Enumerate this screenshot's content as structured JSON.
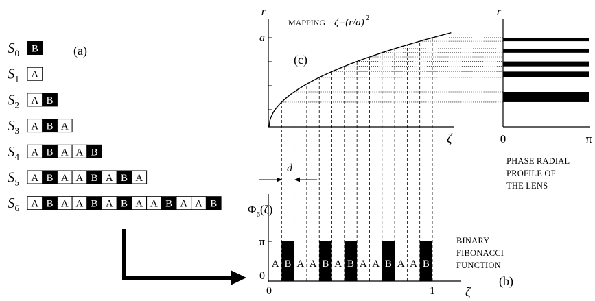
{
  "panel_labels": {
    "a": "(a)",
    "b": "(b)",
    "c": "(c)"
  },
  "sequences": [
    {
      "symbol": "S",
      "index": "0",
      "cells": [
        "B"
      ]
    },
    {
      "symbol": "S",
      "index": "1",
      "cells": [
        "A"
      ]
    },
    {
      "symbol": "S",
      "index": "2",
      "cells": [
        "A",
        "B"
      ]
    },
    {
      "symbol": "S",
      "index": "3",
      "cells": [
        "A",
        "B",
        "A"
      ]
    },
    {
      "symbol": "S",
      "index": "4",
      "cells": [
        "A",
        "B",
        "A",
        "A",
        "B"
      ]
    },
    {
      "symbol": "S",
      "index": "5",
      "cells": [
        "A",
        "B",
        "A",
        "A",
        "B",
        "A",
        "B",
        "A"
      ]
    },
    {
      "symbol": "S",
      "index": "6",
      "cells": [
        "A",
        "B",
        "A",
        "A",
        "B",
        "A",
        "B",
        "A",
        "A",
        "B",
        "A",
        "A",
        "B"
      ]
    }
  ],
  "mapping": {
    "title": "MAPPING",
    "formula": "ζ=(r/a)",
    "exponent": "2",
    "y_axis": "r",
    "y_tick": "a",
    "x_axis": "ζ"
  },
  "lens_profile": {
    "y_axis": "r",
    "x_min": "0",
    "x_max": "π",
    "caption": [
      "PHASE RADIAL",
      "PROFILE OF",
      "THE LENS"
    ]
  },
  "fibonacci_function": {
    "y_symbol": "Φ",
    "y_subscript": "6",
    "y_argument": "(ζ)",
    "y_max": "π",
    "y_min": "0",
    "x_min": "0",
    "x_max": "1",
    "x_axis": "ζ",
    "cell_width_label": "d",
    "levels": {
      "A": 0,
      "B": 1
    },
    "cells": [
      "A",
      "B",
      "A",
      "A",
      "B",
      "A",
      "B",
      "A",
      "A",
      "B",
      "A",
      "A",
      "B"
    ],
    "caption": [
      "BINARY",
      "FIBONACCI",
      "FUNCTION"
    ]
  },
  "colors": {
    "ink": "#000000",
    "paper": "#ffffff"
  }
}
